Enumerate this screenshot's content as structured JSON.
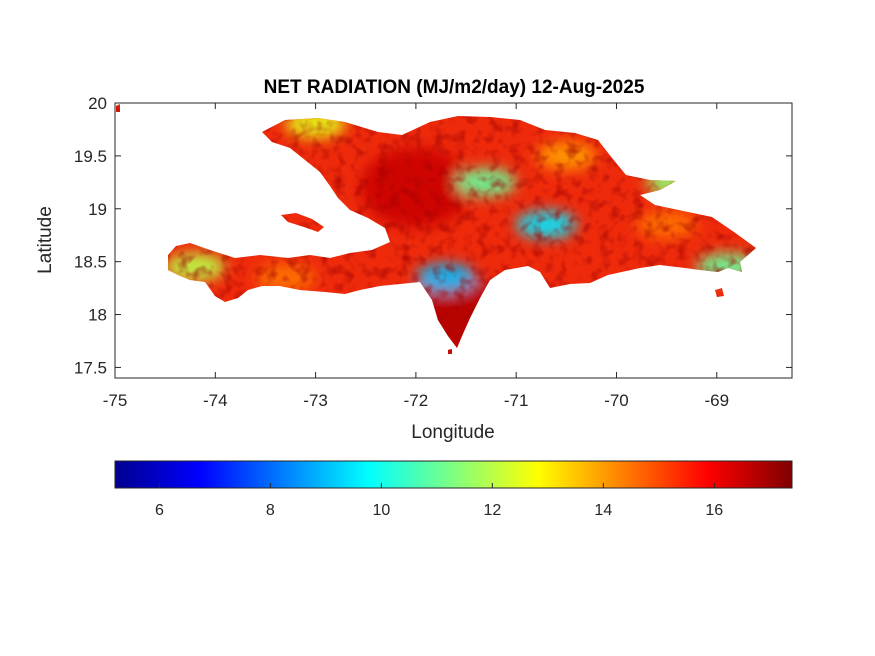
{
  "chart_data": {
    "type": "heatmap",
    "title": "NET RADIATION (MJ/m2/day) 12-Aug-2025",
    "xlabel": "Longitude",
    "ylabel": "Latitude",
    "xlim": [
      -75,
      -68.25
    ],
    "ylim": [
      17.4,
      20
    ],
    "x_ticks": [
      -75,
      -74,
      -73,
      -72,
      -71,
      -70,
      -69
    ],
    "x_tick_labels": [
      "-75",
      "-74",
      "-73",
      "-72",
      "-71",
      "-70",
      "-69"
    ],
    "y_ticks": [
      17.5,
      18,
      18.5,
      19,
      19.5,
      20
    ],
    "y_tick_labels": [
      "17.5",
      "18",
      "18.5",
      "19",
      "19.5",
      "20"
    ],
    "grid": false,
    "colorbar": {
      "orientation": "horizontal",
      "placement": "below",
      "colormap": "jet",
      "range": [
        5.2,
        17.4
      ],
      "ticks": [
        6,
        8,
        10,
        12,
        14,
        16
      ],
      "tick_labels": [
        "6",
        "8",
        "10",
        "12",
        "14",
        "16"
      ],
      "colors": [
        "#00008f",
        "#0000ff",
        "#00ffff",
        "#ffff00",
        "#ff0000",
        "#800000"
      ]
    },
    "regions": [
      {
        "lon": -72.0,
        "lat": 19.2,
        "value": 16.5
      },
      {
        "lon": -71.6,
        "lat": 18.0,
        "value": 16.8
      },
      {
        "lon": -71.3,
        "lat": 19.25,
        "value": 11.0
      },
      {
        "lon": -70.7,
        "lat": 18.85,
        "value": 9.5
      },
      {
        "lon": -73.0,
        "lat": 19.8,
        "value": 12.5
      },
      {
        "lon": -74.2,
        "lat": 18.45,
        "value": 12.0
      },
      {
        "lon": -71.7,
        "lat": 18.35,
        "value": 9.0
      },
      {
        "lon": -69.5,
        "lat": 18.85,
        "value": 14.5
      },
      {
        "lon": -69.4,
        "lat": 19.25,
        "value": 11.5
      },
      {
        "lon": -68.9,
        "lat": 18.45,
        "value": 11.0
      },
      {
        "lon": -73.3,
        "lat": 18.35,
        "value": 14.5
      },
      {
        "lon": -70.5,
        "lat": 19.5,
        "value": 14.0
      }
    ]
  }
}
